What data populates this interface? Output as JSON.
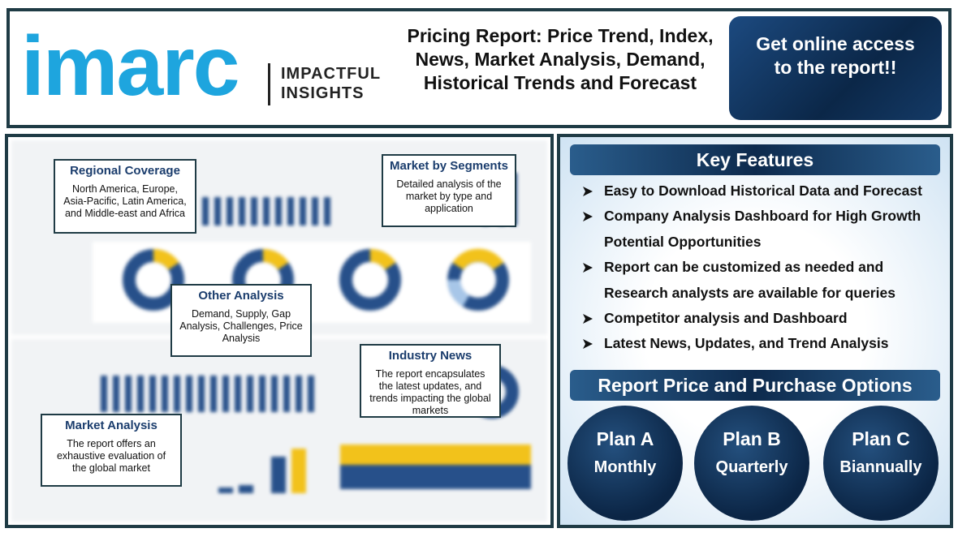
{
  "header": {
    "logo": "imarc",
    "tagline": [
      "IMPACTFUL",
      "INSIGHTS"
    ],
    "title": "Pricing Report: Price Trend, Index, News, Market Analysis, Demand, Historical Trends and Forecast",
    "cta": "Get online access to the report!!"
  },
  "callouts": [
    {
      "title": "Regional Coverage",
      "text": "North America, Europe, Asia-Pacific, Latin America, and Middle-east and Africa"
    },
    {
      "title": "Market by Segments",
      "text": "Detailed analysis of the market by type and application"
    },
    {
      "title": "Other Analysis",
      "text": "Demand, Supply, Gap Analysis, Challenges, Price Analysis"
    },
    {
      "title": "Industry News",
      "text": "The report encapsulates the latest updates, and trends impacting the global markets"
    },
    {
      "title": "Market Analysis",
      "text": "The report offers an exhaustive evaluation of the global market"
    }
  ],
  "key_features": {
    "title": "Key Features",
    "items": [
      "Easy to Download Historical Data and Forecast",
      "Company Analysis Dashboard for High Growth Potential Opportunities",
      "Report can be customized as needed and Research analysts are available for queries",
      "Competitor analysis and Dashboard",
      "Latest News, Updates, and Trend Analysis"
    ]
  },
  "purchase": {
    "title": "Report Price and Purchase Options",
    "plans": [
      {
        "name": "Plan A",
        "period": "Monthly"
      },
      {
        "name": "Plan B",
        "period": "Quarterly"
      },
      {
        "name": "Plan C",
        "period": "Biannually"
      }
    ]
  }
}
